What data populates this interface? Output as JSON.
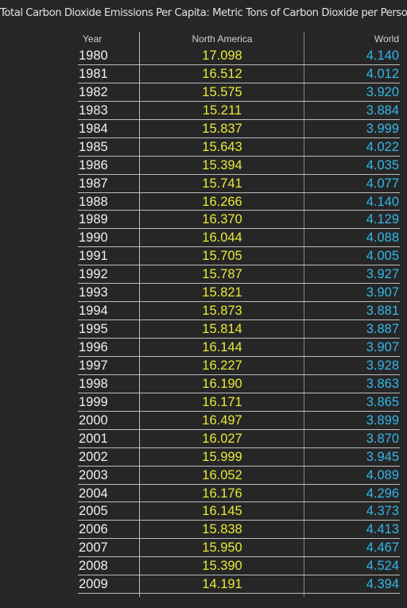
{
  "chart_data": {
    "type": "table",
    "title": "Total Carbon Dioxide Emissions Per Capita: Metric Tons of Carbon Dioxide per Person",
    "columns": [
      "Year",
      "North America",
      "World"
    ],
    "rows": [
      [
        "1980",
        "17.098",
        "4.140"
      ],
      [
        "1981",
        "16.512",
        "4.012"
      ],
      [
        "1982",
        "15.575",
        "3.920"
      ],
      [
        "1983",
        "15.211",
        "3.884"
      ],
      [
        "1984",
        "15.837",
        "3.999"
      ],
      [
        "1985",
        "15.643",
        "4.022"
      ],
      [
        "1986",
        "15.394",
        "4.035"
      ],
      [
        "1987",
        "15.741",
        "4.077"
      ],
      [
        "1988",
        "16.266",
        "4.140"
      ],
      [
        "1989",
        "16.370",
        "4.129"
      ],
      [
        "1990",
        "16.044",
        "4.088"
      ],
      [
        "1991",
        "15.705",
        "4.005"
      ],
      [
        "1992",
        "15.787",
        "3.927"
      ],
      [
        "1993",
        "15.821",
        "3.907"
      ],
      [
        "1994",
        "15.873",
        "3.881"
      ],
      [
        "1995",
        "15.814",
        "3.887"
      ],
      [
        "1996",
        "16.144",
        "3.907"
      ],
      [
        "1997",
        "16.227",
        "3.928"
      ],
      [
        "1998",
        "16.190",
        "3.863"
      ],
      [
        "1999",
        "16.171",
        "3.865"
      ],
      [
        "2000",
        "16.497",
        "3.899"
      ],
      [
        "2001",
        "16.027",
        "3.870"
      ],
      [
        "2002",
        "15.999",
        "3.945"
      ],
      [
        "2003",
        "16.052",
        "4.089"
      ],
      [
        "2004",
        "16.176",
        "4.296"
      ],
      [
        "2005",
        "16.145",
        "4.373"
      ],
      [
        "2006",
        "15.838",
        "4.413"
      ],
      [
        "2007",
        "15.950",
        "4.467"
      ],
      [
        "2008",
        "15.390",
        "4.524"
      ],
      [
        "2009",
        "14.191",
        "4.394"
      ]
    ],
    "colors": {
      "background": "#262626",
      "year_text": "#efefef",
      "north_america_text": "#e6ea3a",
      "world_text": "#34b7e8",
      "rule": "#bdbdbd"
    }
  }
}
